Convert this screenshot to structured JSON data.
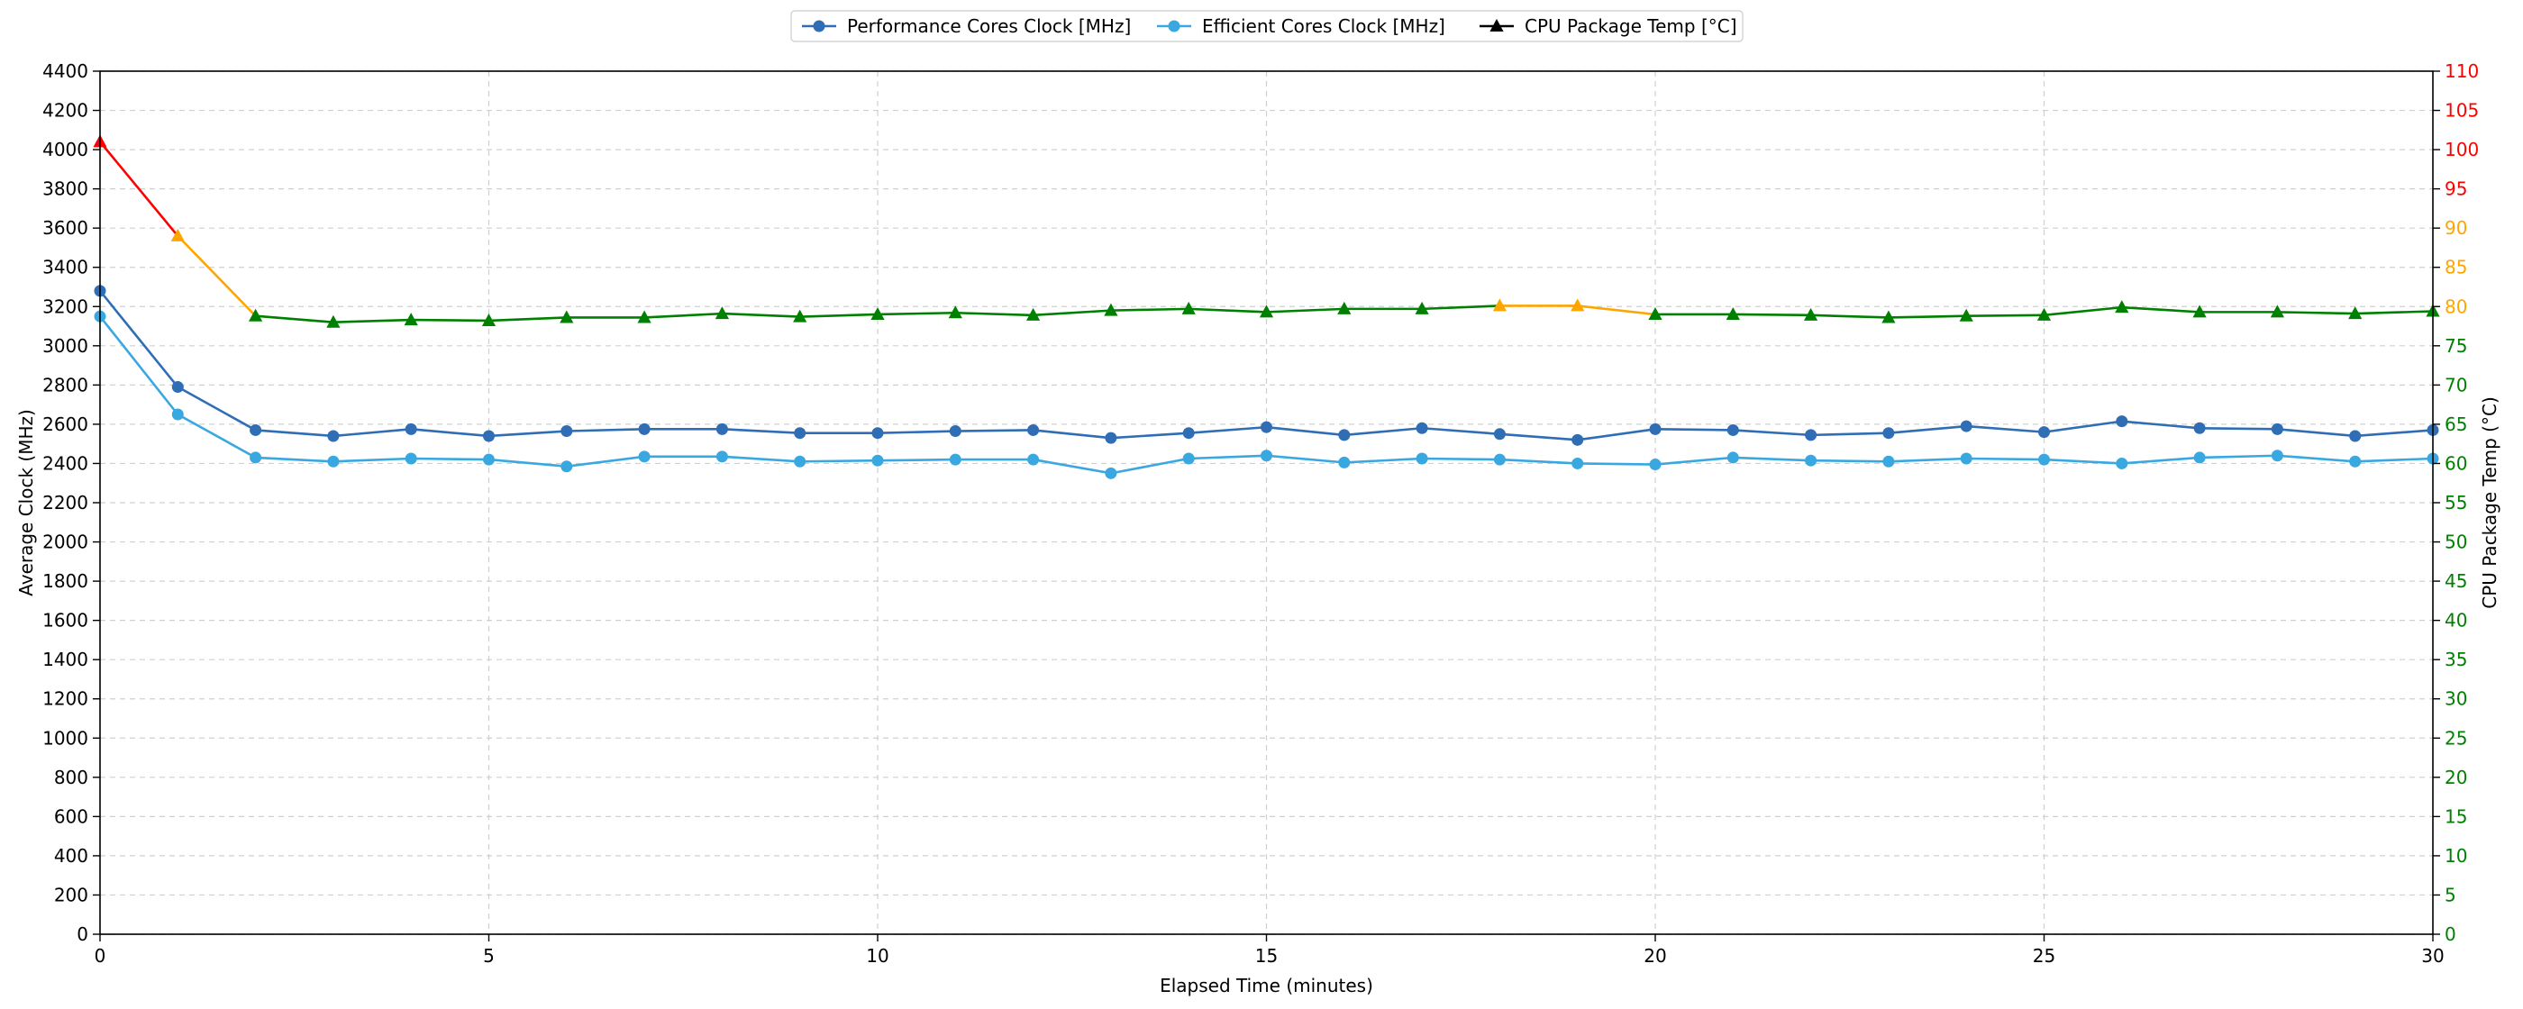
{
  "chart_data": {
    "type": "line",
    "x": [
      0,
      1,
      2,
      3,
      4,
      5,
      6,
      7,
      8,
      9,
      10,
      11,
      12,
      13,
      14,
      15,
      16,
      17,
      18,
      19,
      20,
      21,
      22,
      23,
      24,
      25,
      26,
      27,
      28,
      29,
      30
    ],
    "xlabel": "Elapsed Time (minutes)",
    "xlim": [
      0,
      30
    ],
    "xticks": [
      0,
      5,
      10,
      15,
      20,
      25,
      30
    ],
    "ylabel": "Average Clock (MHz)",
    "ylim": [
      0,
      4400
    ],
    "yticks": [
      0,
      200,
      400,
      600,
      800,
      1000,
      1200,
      1400,
      1600,
      1800,
      2000,
      2200,
      2400,
      2600,
      2800,
      3000,
      3200,
      3400,
      3600,
      3800,
      4000,
      4200,
      4400
    ],
    "y2label": "CPU Package Temp (°C)",
    "y2lim": [
      0,
      110
    ],
    "y2ticks": [
      0,
      5,
      10,
      15,
      20,
      25,
      30,
      35,
      40,
      45,
      50,
      55,
      60,
      65,
      70,
      75,
      80,
      85,
      90,
      95,
      100,
      105,
      110
    ],
    "grid": true,
    "legend_position": "top-center",
    "series": [
      {
        "name": "Performance Cores Clock [MHz]",
        "axis": "left",
        "marker": "circle",
        "color": "#2f6db5",
        "values": [
          3280,
          2790,
          2570,
          2540,
          2575,
          2540,
          2565,
          2575,
          2575,
          2555,
          2555,
          2565,
          2570,
          2530,
          2555,
          2585,
          2545,
          2580,
          2550,
          2520,
          2575,
          2570,
          2545,
          2555,
          2590,
          2560,
          2615,
          2580,
          2575,
          2540,
          2570
        ]
      },
      {
        "name": "Efficient Cores Clock [MHz]",
        "axis": "left",
        "marker": "circle",
        "color": "#3aa8e0",
        "values": [
          3150,
          2650,
          2430,
          2410,
          2425,
          2420,
          2385,
          2435,
          2435,
          2410,
          2415,
          2420,
          2420,
          2350,
          2425,
          2440,
          2405,
          2425,
          2420,
          2400,
          2395,
          2430,
          2415,
          2410,
          2425,
          2420,
          2400,
          2430,
          2440,
          2410,
          2425
        ]
      },
      {
        "name": "CPU Package Temp [°C]",
        "axis": "right",
        "marker": "triangle",
        "color": "#000000",
        "values": [
          101,
          89,
          78.8,
          78,
          78.3,
          78.2,
          78.6,
          78.6,
          79.1,
          78.7,
          79,
          79.2,
          78.9,
          79.5,
          79.7,
          79.3,
          79.7,
          79.7,
          80.1,
          80.1,
          79,
          79,
          78.9,
          78.6,
          78.8,
          78.9,
          79.9,
          79.3,
          79.3,
          79.1,
          79.4
        ]
      }
    ],
    "temp_colors": {
      "hot": "#ff0000",
      "warm": "#ffa500",
      "normal": "#008000"
    },
    "temp_thresholds": {
      "hot_above": 90,
      "warm_above": 80
    }
  }
}
